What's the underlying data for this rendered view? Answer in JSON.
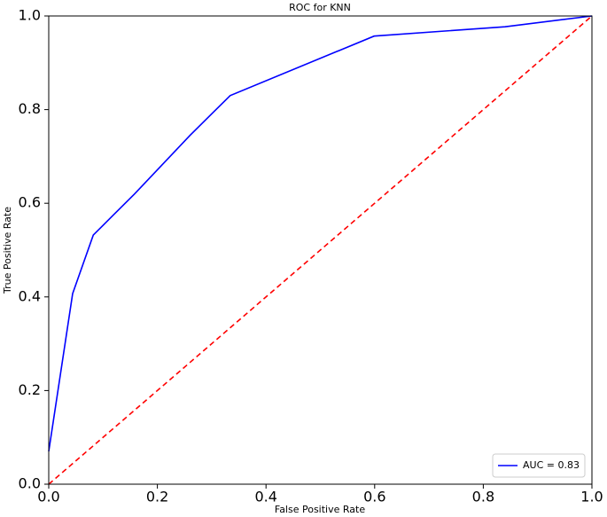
{
  "chart_data": {
    "type": "line",
    "title": "ROC for KNN",
    "xlabel": "False Positive Rate",
    "ylabel": "True Positive Rate",
    "series": [
      {
        "name": "AUC = 0.83",
        "color": "#0000ff",
        "x": [
          0,
          0.044,
          0.082,
          0.158,
          0.26,
          0.334,
          0.599,
          0.84,
          1
        ],
        "values": [
          0.07,
          0.407,
          0.532,
          0.62,
          0.745,
          0.83,
          0.957,
          0.977,
          1
        ]
      },
      {
        "color": "#ff0000",
        "dashed": true,
        "x": [
          0,
          1
        ],
        "values": [
          0,
          1
        ]
      }
    ],
    "xlim": [
      0,
      1
    ],
    "ylim": [
      0,
      1
    ],
    "xticks": [
      {
        "value": 0,
        "label": "0.0"
      },
      {
        "value": 0.2,
        "label": "0.2"
      },
      {
        "value": 0.4,
        "label": "0.4"
      },
      {
        "value": 0.6,
        "label": "0.6"
      },
      {
        "value": 0.8,
        "label": "0.8"
      },
      {
        "value": 1,
        "label": "1.0"
      }
    ],
    "yticks": [
      {
        "value": 0,
        "label": "0.0"
      },
      {
        "value": 0.2,
        "label": "0.2"
      },
      {
        "value": 0.4,
        "label": "0.4"
      },
      {
        "value": 0.6,
        "label": "0.6"
      },
      {
        "value": 0.8,
        "label": "0.8"
      },
      {
        "value": 1,
        "label": "1.0"
      }
    ],
    "legend": "lower right"
  }
}
